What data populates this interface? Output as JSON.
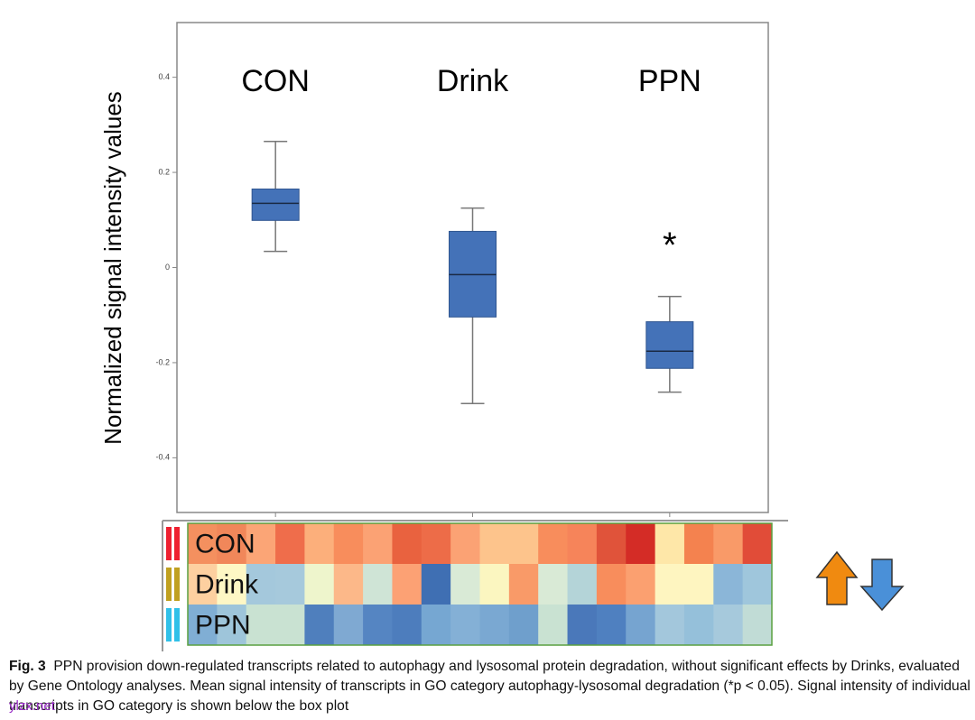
{
  "chart_data": [
    {
      "type": "box",
      "ylabel": "Normalized signal intensity values",
      "categories": [
        "CON",
        "Drink",
        "PPN"
      ],
      "color": "#4472b8",
      "boxes": [
        {
          "whislo": 0.034,
          "q1": 0.099,
          "med": 0.135,
          "q3": 0.165,
          "whishi": 0.265
        },
        {
          "whislo": -0.286,
          "q1": -0.104,
          "med": -0.015,
          "q3": 0.076,
          "whishi": 0.125
        },
        {
          "whislo": -0.262,
          "q1": -0.212,
          "med": -0.176,
          "q3": -0.114,
          "whishi": -0.061
        }
      ],
      "annotations": [
        {
          "text": "*",
          "x": "PPN",
          "y": 0.057
        }
      ],
      "ylim": [
        -0.515,
        0.515
      ],
      "yticks": [
        0.4,
        0.2,
        0,
        -0.2,
        -0.4
      ]
    },
    {
      "type": "heatmap",
      "rows": [
        "CON",
        "Drink",
        "PPN"
      ],
      "row_colors": [
        "#ee2030",
        "#c0a020",
        "#30c0e8"
      ],
      "cells": [
        [
          "#f4905f",
          "#f1875a",
          "#fba576",
          "#ef6d4b",
          "#fcaf7b",
          "#f88d5c",
          "#fba274",
          "#e9623f",
          "#ed6c48",
          "#fba274",
          "#fdc48c",
          "#fdc48c",
          "#f88d5c",
          "#f6845a",
          "#e0533a",
          "#d42c26",
          "#fee7a8",
          "#f4824f",
          "#f99a68",
          "#e14c38"
        ],
        [
          "#fdd0a0",
          "#fef7c5",
          "#a4c8dc",
          "#a6c9dc",
          "#eef5cc",
          "#fcb889",
          "#cfe4d6",
          "#fca174",
          "#3f6fb3",
          "#d9ead6",
          "#fbf6c0",
          "#f99a68",
          "#d9ead6",
          "#b4d4d8",
          "#f88d5c",
          "#fba070",
          "#fef5c0",
          "#fef5c0",
          "#8bb6d8",
          "#9fc6dc"
        ],
        [
          "#80aed4",
          "#9ec5da",
          "#c9e2d2",
          "#c9e2d2",
          "#4f7fbd",
          "#7fa9d2",
          "#5585c2",
          "#4d7dbd",
          "#76a7d2",
          "#84b0d6",
          "#7aa8d2",
          "#6f9fcc",
          "#c9e2d2",
          "#4a78ba",
          "#4f80c0",
          "#76a4d0",
          "#a3c7dc",
          "#95c0da",
          "#a6c9dc",
          "#c1dcd6"
        ]
      ]
    }
  ],
  "caption": {
    "label": "Fig. 3",
    "text": "PPN provision down-regulated transcripts related to autophagy and lysosomal protein degradation, without significant effects by Drinks, evaluated by Gene Ontology analyses. Mean signal intensity of transcripts in GO category autophagy-lysosomal degradation (*p < 0.05). Signal intensity of individual transcripts in GO category is shown below the box plot"
  },
  "watermark": "ylzx.net"
}
